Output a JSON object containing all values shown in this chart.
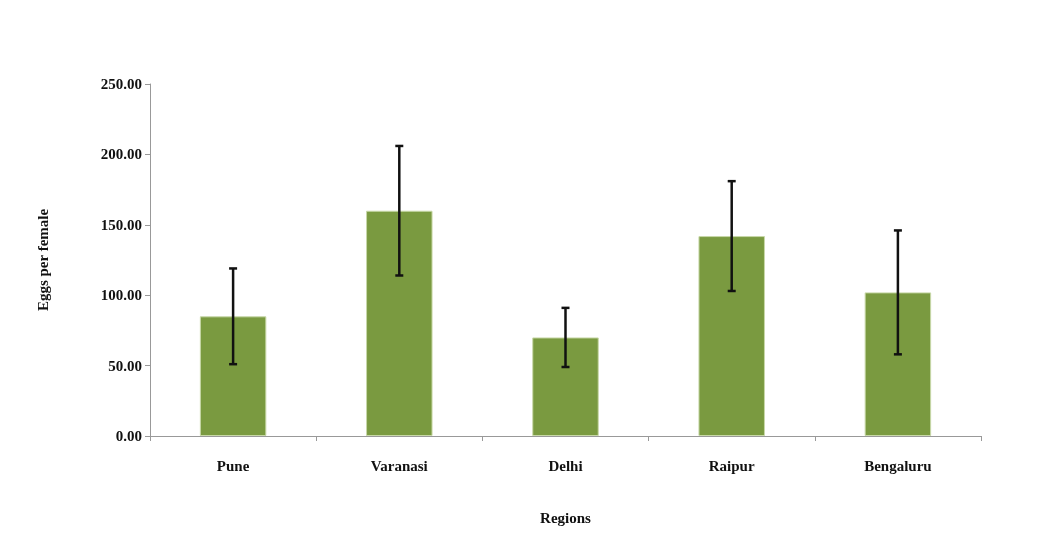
{
  "chart_data": {
    "type": "bar",
    "xlabel": "Regions",
    "ylabel": "Eggs per female",
    "categories": [
      "Pune",
      "Varanasi",
      "Delhi",
      "Raipur",
      "Bengaluru"
    ],
    "values": [
      85,
      160,
      70,
      142,
      102
    ],
    "errors": [
      34,
      46,
      21,
      39,
      44
    ],
    "color": "#7a9a40",
    "ylim": [
      0,
      250
    ],
    "yticks": [
      {
        "value": 0,
        "label": "0.00"
      },
      {
        "value": 50,
        "label": "50.00"
      },
      {
        "value": 100,
        "label": "100.00"
      },
      {
        "value": 150,
        "label": "150.00"
      },
      {
        "value": 200,
        "label": "200.00"
      },
      {
        "value": 250,
        "label": "250.00"
      }
    ],
    "grid": false
  }
}
